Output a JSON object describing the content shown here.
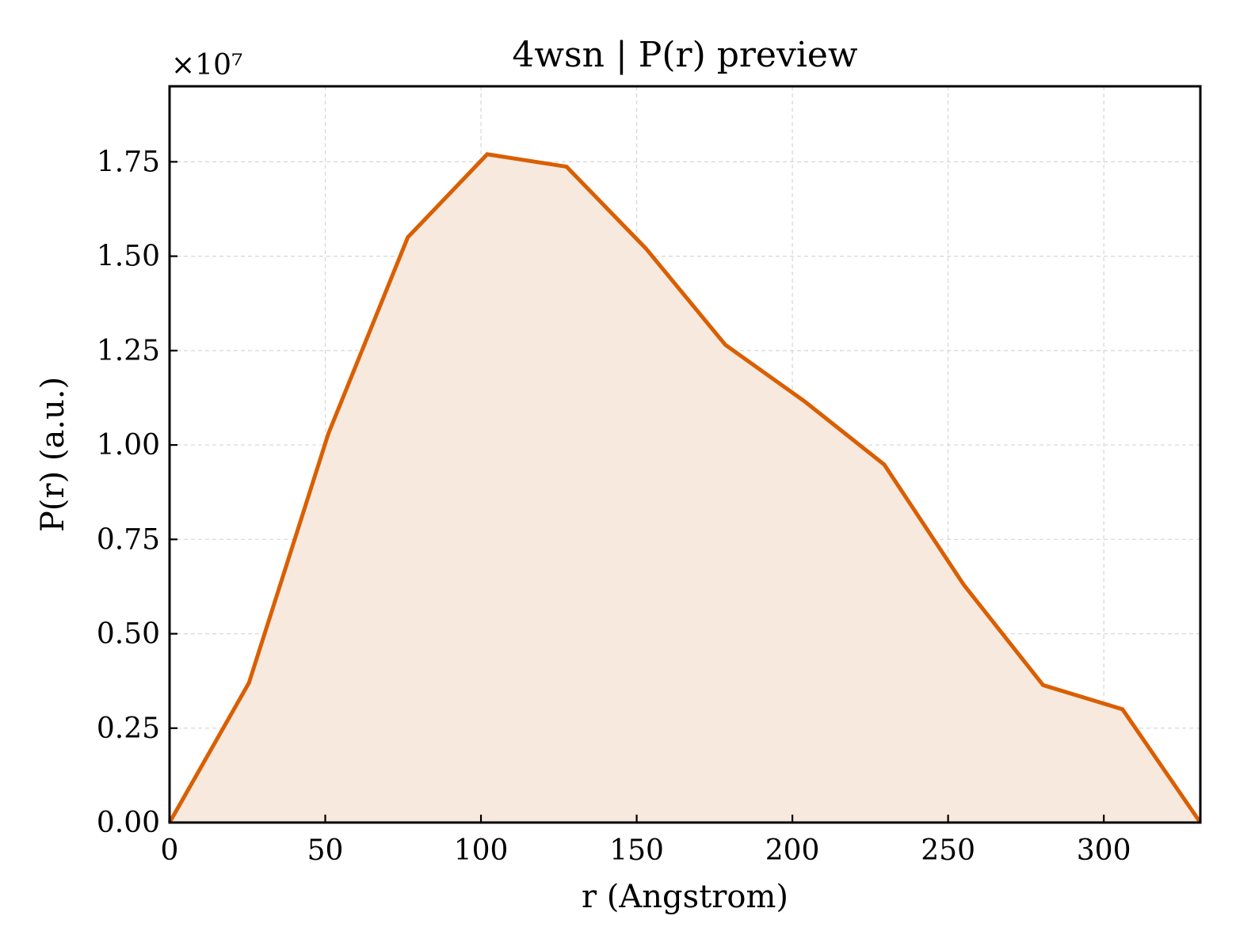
{
  "chart_data": {
    "type": "area",
    "title": "4wsn | P(r) preview",
    "xlabel": "r (Angstrom)",
    "ylabel": "P(r) (a.u.)",
    "y_offset_label": "×10⁷",
    "y_scale_factor": 10000000,
    "xlim": [
      0,
      331
    ],
    "ylim": [
      0,
      19500000
    ],
    "x_ticks": [
      0,
      50,
      100,
      150,
      200,
      250,
      300
    ],
    "y_ticks": [
      0,
      2500000,
      5000000,
      7500000,
      10000000,
      12500000,
      15000000,
      17500000
    ],
    "y_tick_labels": [
      "0.00",
      "0.25",
      "0.50",
      "0.75",
      "1.00",
      "1.25",
      "1.50",
      "1.75"
    ],
    "grid": true,
    "legend": "none",
    "series": [
      {
        "color": "#d95f02",
        "fill_color": "#f8e9df",
        "x": [
          0,
          25.5,
          51,
          76.5,
          102,
          127.5,
          153,
          178.5,
          204,
          229.5,
          255,
          280.5,
          306,
          331
        ],
        "y": [
          0,
          3700000,
          10300000,
          15500000,
          17700000,
          17370000,
          15200000,
          12650000,
          11150000,
          9480000,
          6300000,
          3640000,
          3000000,
          0
        ]
      }
    ]
  }
}
